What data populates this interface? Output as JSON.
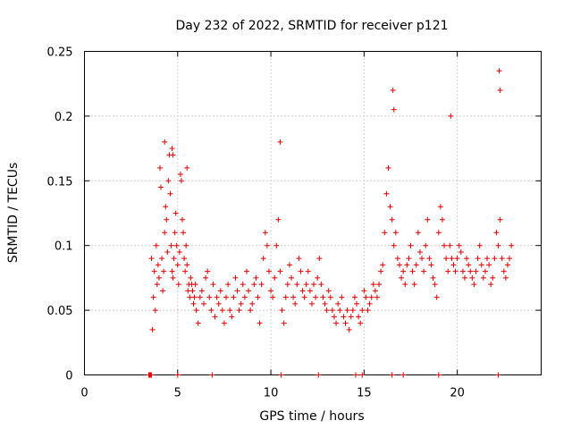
{
  "chart_data": {
    "type": "scatter",
    "title": "Day 232 of 2022, SRMTID for receiver p121",
    "xlabel": "GPS time / hours",
    "ylabel": "SRMTID / TECUs",
    "xlim": [
      0,
      24.5
    ],
    "ylim": [
      0,
      0.25
    ],
    "xticks": [
      0,
      5,
      10,
      15,
      20
    ],
    "xtick_labels": [
      "0",
      "5",
      "10",
      "15",
      "20"
    ],
    "yticks": [
      0,
      0.05,
      0.1,
      0.15,
      0.2,
      0.25
    ],
    "ytick_labels": [
      "0",
      "0.05",
      "0.1",
      "0.15",
      "0.2",
      "0.25"
    ],
    "grid": true,
    "marker": "+",
    "color": "#e00000",
    "series": [
      {
        "name": "SRMTID",
        "x": [
          3.6,
          3.65,
          3.7,
          3.75,
          3.8,
          3.85,
          3.9,
          3.95,
          4.0,
          4.05,
          4.1,
          4.15,
          4.2,
          4.25,
          4.3,
          4.35,
          4.4,
          4.45,
          4.5,
          4.55,
          4.6,
          4.65,
          4.7,
          4.75,
          4.8,
          4.85,
          4.9,
          4.95,
          5.0,
          5.05,
          5.1,
          5.15,
          5.2,
          5.25,
          5.3,
          5.35,
          5.4,
          5.45,
          5.5,
          5.55,
          5.6,
          5.65,
          5.7,
          5.75,
          5.8,
          5.85,
          5.9,
          5.95,
          6.0,
          6.1,
          6.2,
          6.3,
          6.4,
          6.5,
          6.6,
          6.7,
          6.8,
          6.9,
          7.0,
          7.1,
          7.2,
          7.3,
          7.4,
          7.5,
          7.6,
          7.7,
          7.8,
          7.9,
          8.0,
          8.1,
          8.2,
          8.3,
          8.4,
          8.5,
          8.6,
          8.7,
          8.8,
          8.9,
          9.0,
          9.1,
          9.2,
          9.3,
          9.4,
          9.5,
          9.6,
          9.7,
          9.8,
          9.9,
          10.0,
          10.1,
          10.2,
          10.3,
          10.4,
          10.5,
          10.6,
          10.7,
          10.8,
          10.9,
          11.0,
          11.1,
          11.2,
          11.3,
          11.4,
          11.5,
          11.6,
          11.7,
          11.8,
          11.9,
          12.0,
          12.1,
          12.2,
          12.3,
          12.4,
          12.5,
          12.6,
          12.7,
          12.8,
          12.9,
          13.0,
          13.1,
          13.2,
          13.3,
          13.4,
          13.5,
          13.6,
          13.7,
          13.8,
          13.9,
          14.0,
          14.1,
          14.2,
          14.3,
          14.4,
          14.5,
          14.6,
          14.7,
          14.8,
          14.9,
          15.0,
          15.1,
          15.2,
          15.3,
          15.4,
          15.5,
          15.6,
          15.7,
          15.8,
          15.9,
          16.0,
          16.1,
          16.2,
          16.3,
          16.4,
          16.5,
          16.6,
          16.7,
          16.8,
          16.9,
          17.0,
          17.1,
          17.2,
          17.3,
          17.4,
          17.5,
          17.6,
          17.7,
          17.8,
          17.9,
          18.0,
          18.1,
          18.2,
          18.3,
          18.4,
          18.5,
          18.6,
          18.7,
          18.8,
          18.9,
          19.0,
          19.1,
          19.2,
          19.3,
          19.4,
          19.5,
          19.6,
          19.7,
          19.8,
          19.9,
          20.0,
          20.1,
          20.2,
          20.3,
          20.4,
          20.5,
          20.6,
          20.7,
          20.8,
          20.9,
          21.0,
          21.1,
          21.2,
          21.3,
          21.4,
          21.5,
          21.6,
          21.7,
          21.8,
          21.9,
          22.0,
          22.1,
          22.2,
          22.3,
          22.4,
          22.5,
          22.6,
          22.7,
          22.8,
          22.9,
          4.3,
          4.7,
          4.75,
          5.5,
          10.5,
          16.55,
          16.6,
          19.65,
          22.25,
          22.3
        ],
        "y": [
          0.09,
          0.035,
          0.06,
          0.08,
          0.05,
          0.1,
          0.07,
          0.085,
          0.075,
          0.16,
          0.145,
          0.09,
          0.065,
          0.08,
          0.11,
          0.13,
          0.12,
          0.095,
          0.15,
          0.17,
          0.14,
          0.1,
          0.08,
          0.075,
          0.09,
          0.11,
          0.125,
          0.1,
          0.085,
          0.07,
          0.095,
          0.155,
          0.15,
          0.12,
          0.11,
          0.09,
          0.08,
          0.1,
          0.085,
          0.065,
          0.07,
          0.06,
          0.075,
          0.07,
          0.065,
          0.055,
          0.06,
          0.07,
          0.05,
          0.04,
          0.06,
          0.065,
          0.055,
          0.075,
          0.08,
          0.06,
          0.05,
          0.07,
          0.045,
          0.06,
          0.055,
          0.065,
          0.05,
          0.04,
          0.06,
          0.07,
          0.05,
          0.045,
          0.06,
          0.075,
          0.065,
          0.05,
          0.055,
          0.07,
          0.06,
          0.08,
          0.065,
          0.05,
          0.055,
          0.07,
          0.075,
          0.06,
          0.04,
          0.07,
          0.09,
          0.11,
          0.1,
          0.08,
          0.065,
          0.06,
          0.075,
          0.1,
          0.12,
          0.08,
          0.05,
          0.04,
          0.06,
          0.07,
          0.085,
          0.075,
          0.06,
          0.055,
          0.07,
          0.09,
          0.08,
          0.065,
          0.06,
          0.07,
          0.08,
          0.065,
          0.055,
          0.07,
          0.06,
          0.075,
          0.09,
          0.07,
          0.06,
          0.055,
          0.05,
          0.065,
          0.06,
          0.05,
          0.045,
          0.04,
          0.055,
          0.05,
          0.06,
          0.045,
          0.04,
          0.05,
          0.035,
          0.045,
          0.05,
          0.06,
          0.055,
          0.045,
          0.04,
          0.05,
          0.065,
          0.06,
          0.05,
          0.055,
          0.06,
          0.07,
          0.065,
          0.06,
          0.07,
          0.08,
          0.085,
          0.11,
          0.14,
          0.16,
          0.13,
          0.12,
          0.1,
          0.11,
          0.09,
          0.085,
          0.075,
          0.08,
          0.07,
          0.085,
          0.09,
          0.1,
          0.08,
          0.07,
          0.085,
          0.11,
          0.095,
          0.09,
          0.08,
          0.1,
          0.12,
          0.09,
          0.085,
          0.075,
          0.07,
          0.06,
          0.11,
          0.13,
          0.12,
          0.1,
          0.09,
          0.08,
          0.1,
          0.09,
          0.085,
          0.08,
          0.09,
          0.1,
          0.095,
          0.08,
          0.075,
          0.09,
          0.085,
          0.08,
          0.075,
          0.07,
          0.08,
          0.09,
          0.1,
          0.085,
          0.075,
          0.08,
          0.09,
          0.085,
          0.07,
          0.075,
          0.09,
          0.11,
          0.1,
          0.12,
          0.09,
          0.08,
          0.075,
          0.085,
          0.09,
          0.1,
          0.18,
          0.175,
          0.17,
          0.16,
          0.18,
          0.22,
          0.205,
          0.2,
          0.235,
          0.22
        ]
      }
    ],
    "x_axis_markers": [
      3.45,
      3.5,
      3.55,
      3.6,
      5.0,
      6.85,
      10.55,
      12.55,
      14.55,
      14.9,
      16.5,
      17.1,
      19.0,
      22.2
    ]
  }
}
